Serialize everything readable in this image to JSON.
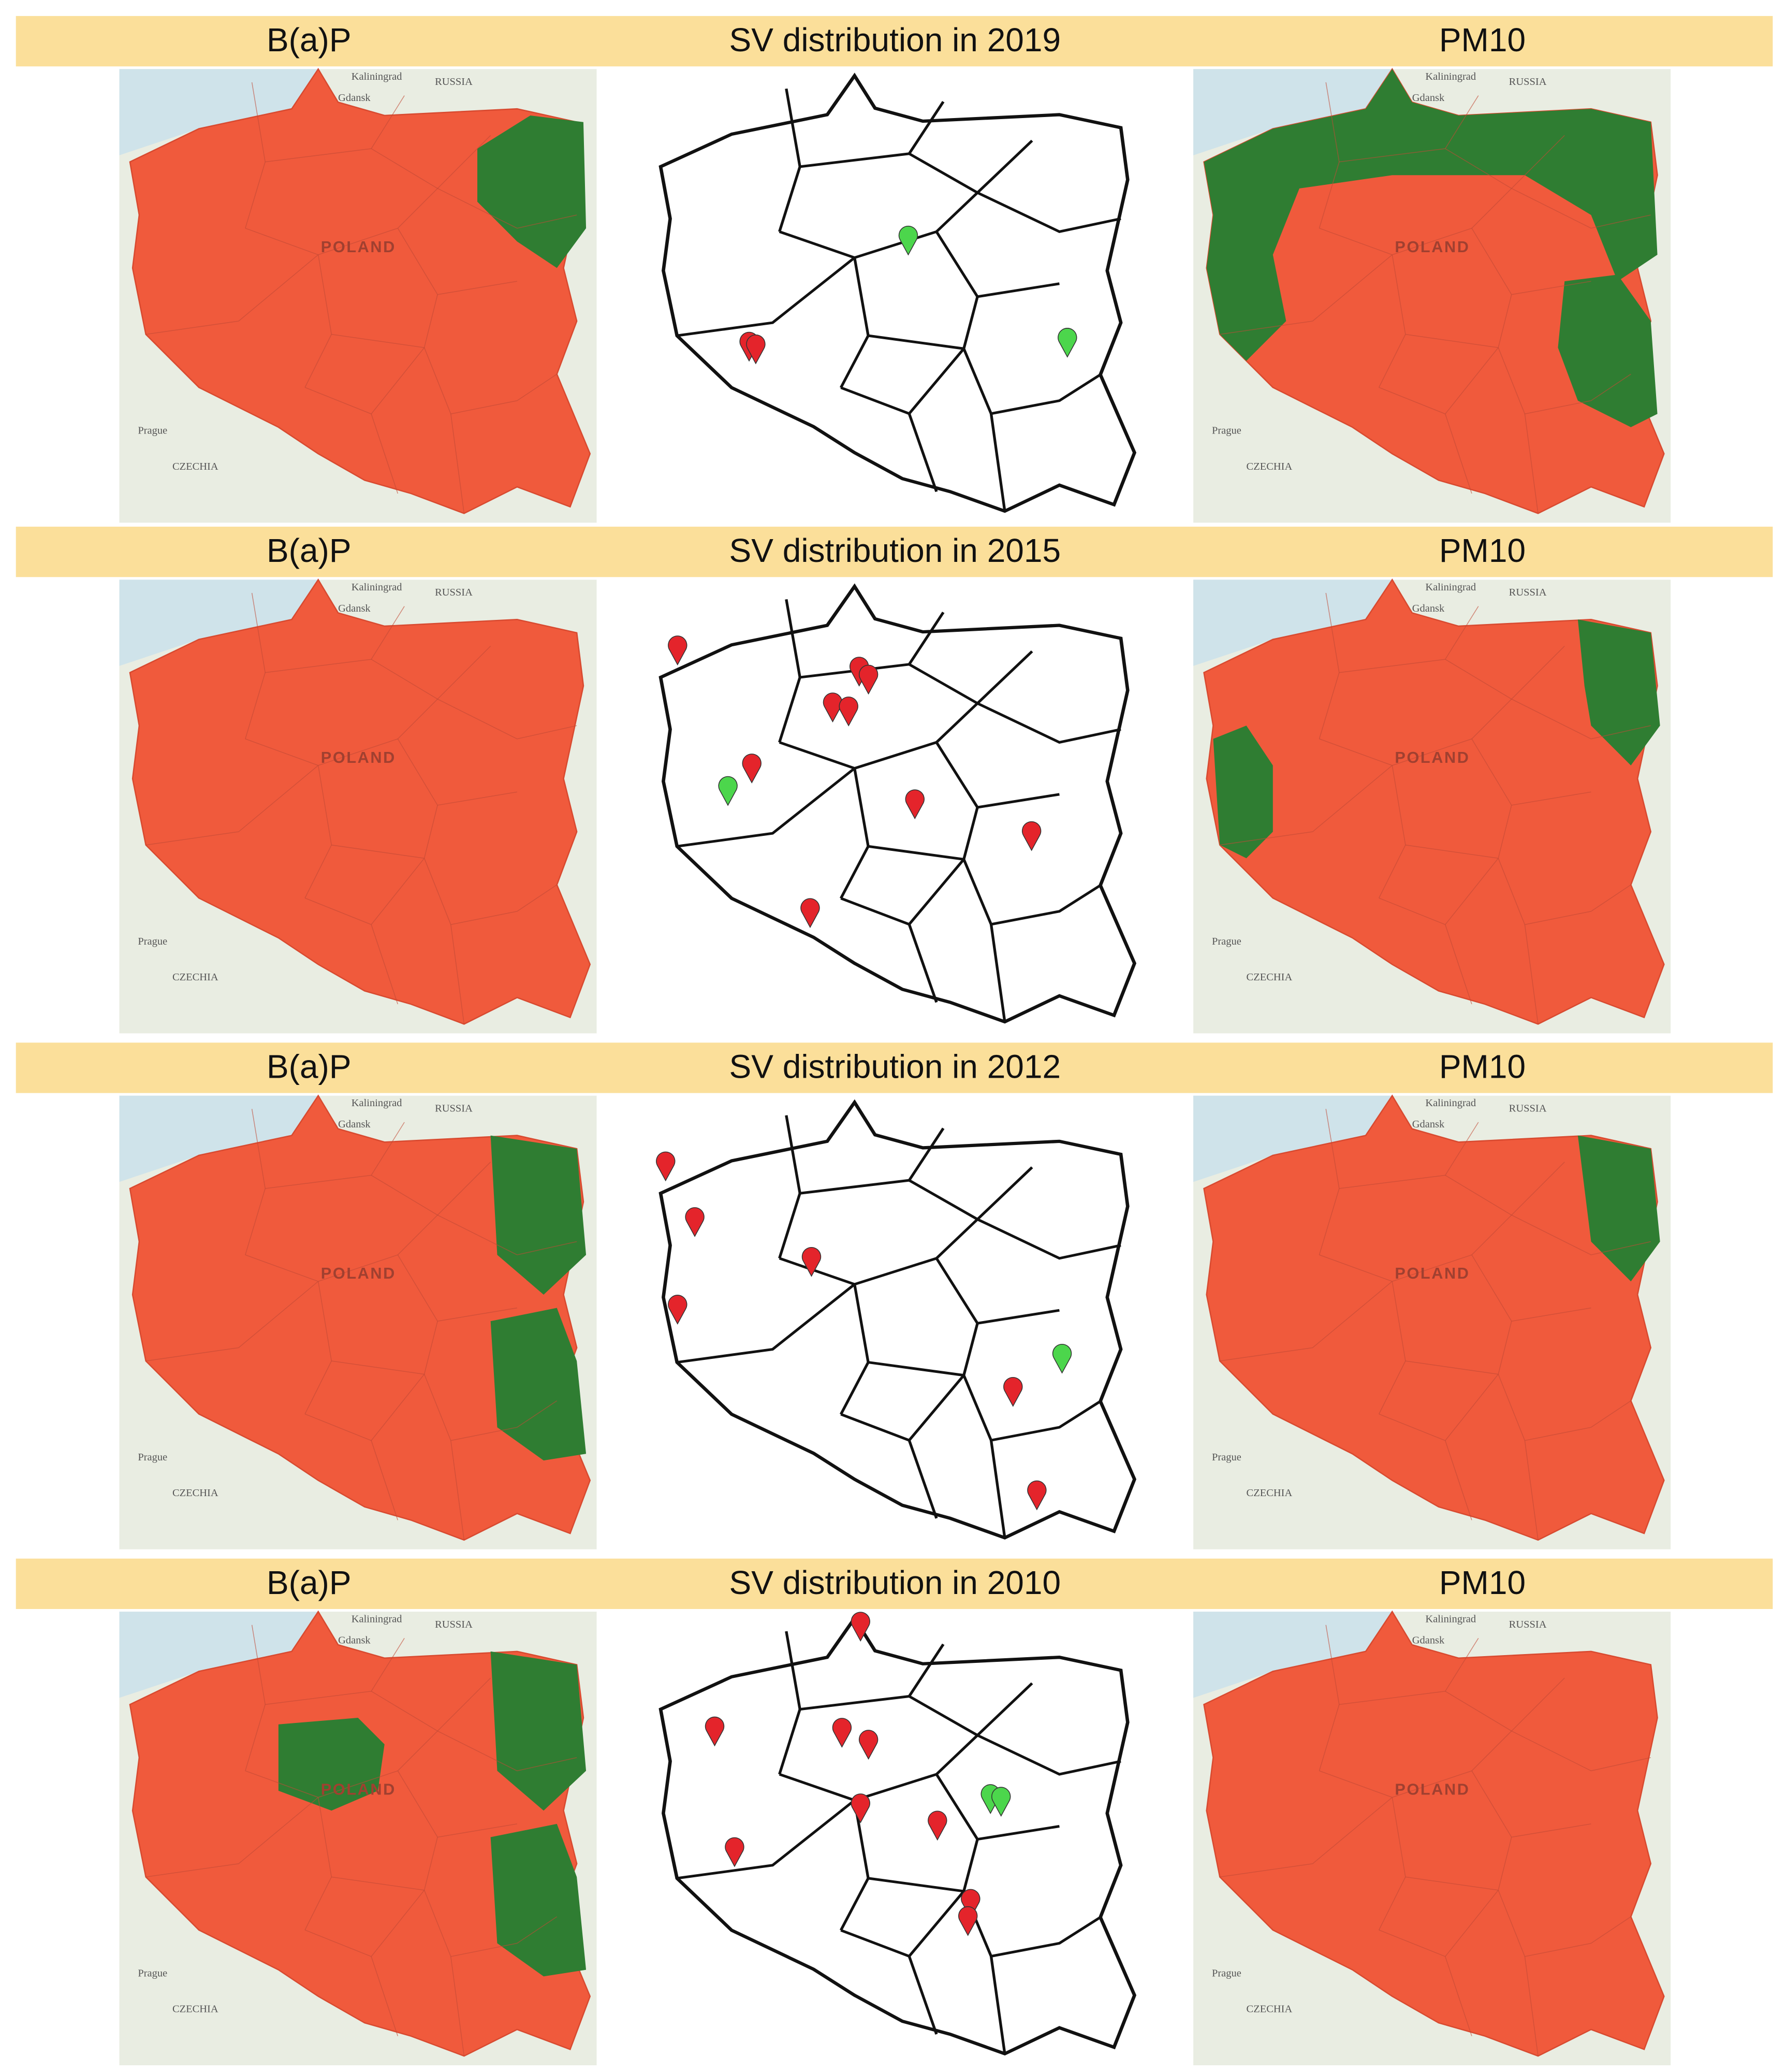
{
  "rows": [
    {
      "left_title": "B(a)P",
      "center_title": "SV distribution in 2019",
      "right_title": "PM10"
    },
    {
      "left_title": "B(a)P",
      "center_title": "SV distribution in 2015",
      "right_title": "PM10"
    },
    {
      "left_title": "B(a)P",
      "center_title": "SV distribution in 2012",
      "right_title": "PM10"
    },
    {
      "left_title": "B(a)P",
      "center_title": "SV distribution in 2010",
      "right_title": "PM10"
    }
  ],
  "map_labels": [
    "Kaliningrad",
    "RUSSIA",
    "Gdansk",
    "POLAND",
    "Prague",
    "CZECHIA"
  ]
}
